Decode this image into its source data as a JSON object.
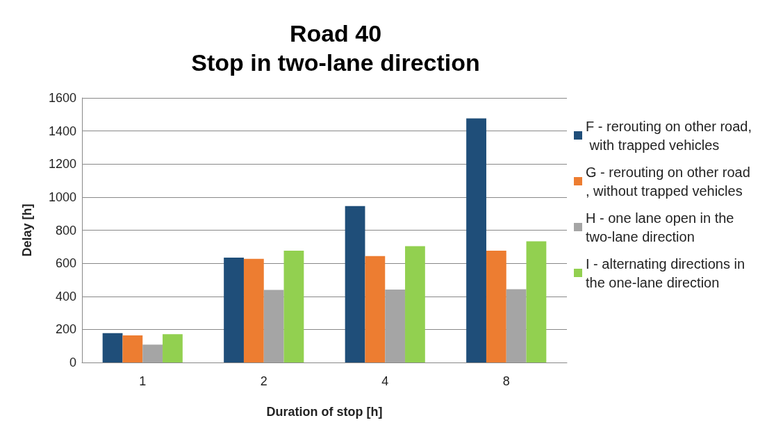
{
  "chart_data": {
    "type": "bar",
    "title": "Road 40",
    "subtitle": "Stop in two-lane direction",
    "xlabel": "Duration of stop [h]",
    "ylabel": "Delay [h]",
    "categories": [
      "1",
      "2",
      "4",
      "8"
    ],
    "series": [
      {
        "name": "F - rerouting on other road, with trapped vehicles",
        "color": "#1f4e79",
        "values": [
          177,
          634,
          946,
          1476
        ]
      },
      {
        "name": "G - rerouting on other road, without trapped vehicles",
        "color": "#ed7d31",
        "values": [
          164,
          627,
          644,
          676
        ]
      },
      {
        "name": "H - one lane open in the two-lane direction",
        "color": "#a5a5a5",
        "values": [
          108,
          439,
          441,
          443
        ]
      },
      {
        "name": "I - alternating directions in the one-lane direction",
        "color": "#92d050",
        "values": [
          171,
          676,
          703,
          733
        ]
      }
    ],
    "ylim": [
      0,
      1600
    ],
    "yticks": [
      0,
      200,
      400,
      600,
      800,
      1000,
      1200,
      1400,
      1600
    ],
    "grid": "y",
    "legend": "right"
  }
}
